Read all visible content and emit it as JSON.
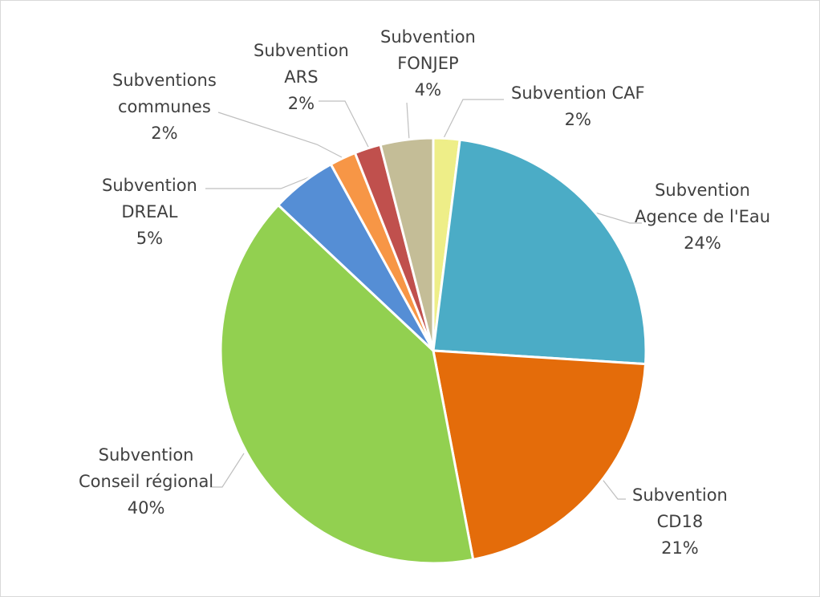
{
  "chart_data": {
    "type": "pie",
    "title": "",
    "start_angle_deg": 0,
    "direction": "clockwise",
    "slices": [
      {
        "label_lines": [
          "Subvention CAF"
        ],
        "percent_label": "2%",
        "value": 2,
        "color": "#EEEE88"
      },
      {
        "label_lines": [
          "Subvention",
          "Agence de l'Eau"
        ],
        "percent_label": "24%",
        "value": 24,
        "color": "#4BACC6"
      },
      {
        "label_lines": [
          "Subvention",
          "CD18"
        ],
        "percent_label": "21%",
        "value": 21,
        "color": "#E46C0A"
      },
      {
        "label_lines": [
          "Subvention",
          "Conseil régional"
        ],
        "percent_label": "40%",
        "value": 40,
        "color": "#92D050"
      },
      {
        "label_lines": [
          "Subvention",
          "DREAL"
        ],
        "percent_label": "5%",
        "value": 5,
        "color": "#558ED5"
      },
      {
        "label_lines": [
          "Subventions",
          "communes"
        ],
        "percent_label": "2%",
        "value": 2,
        "color": "#F79646"
      },
      {
        "label_lines": [
          "Subvention",
          "ARS"
        ],
        "percent_label": "2%",
        "value": 2,
        "color": "#C0504D"
      },
      {
        "label_lines": [
          "Subvention",
          "FONJEP"
        ],
        "percent_label": "4%",
        "value": 4,
        "color": "#C4BD97"
      }
    ],
    "leader_line_color": "#bfbfbf",
    "label_color": "#404040"
  }
}
